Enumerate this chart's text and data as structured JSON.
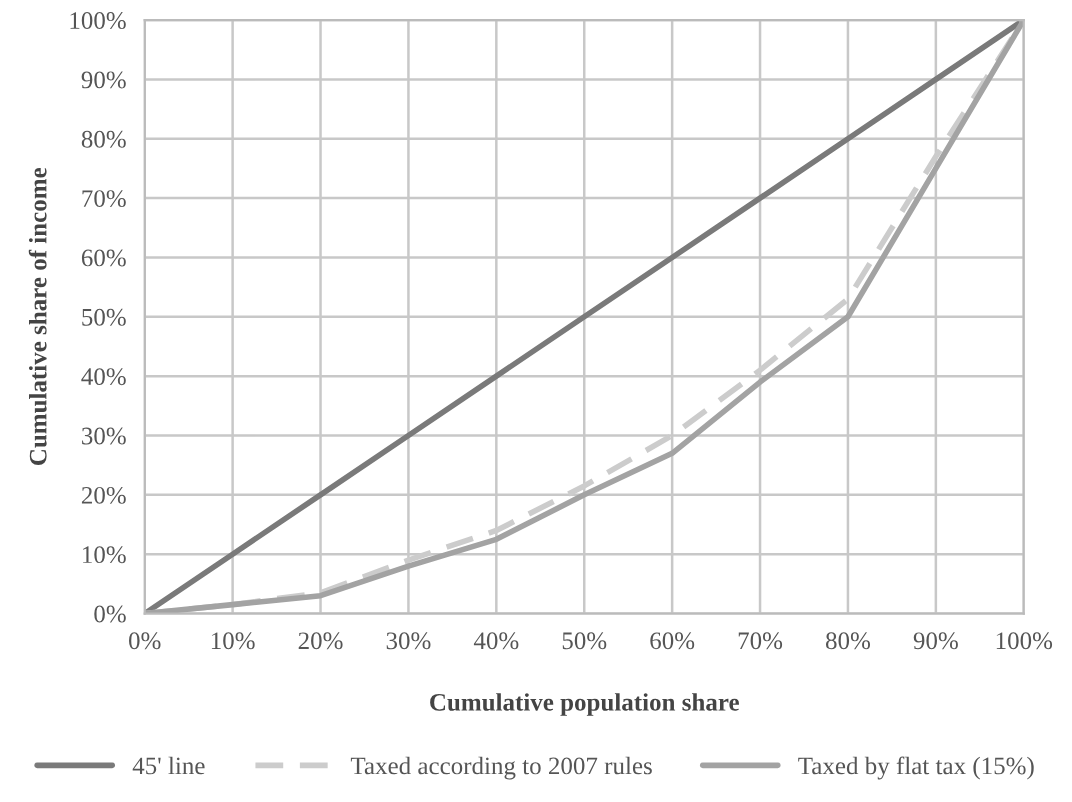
{
  "chart_data": {
    "type": "line",
    "xlabel": "Cumulative population share",
    "ylabel": "Cumulative share of income",
    "x": [
      0,
      10,
      20,
      30,
      40,
      50,
      60,
      70,
      80,
      90,
      100
    ],
    "series": [
      {
        "name": "45' line",
        "color": "#7a7a7a",
        "line_style": "solid",
        "values": [
          0,
          10,
          20,
          30,
          40,
          50,
          60,
          70,
          80,
          90,
          100
        ]
      },
      {
        "name": "Taxed according to 2007 rules",
        "color": "#cccccc",
        "line_style": "dashed",
        "values": [
          0,
          1.5,
          3.5,
          9,
          14,
          21.5,
          30,
          41,
          53,
          77,
          100
        ]
      },
      {
        "name": "Taxed by flat tax (15%)",
        "color": "#a3a3a3",
        "line_style": "solid",
        "values": [
          0,
          1.5,
          3,
          8,
          12.5,
          20,
          27,
          39,
          50,
          75,
          100
        ]
      }
    ],
    "xlim": [
      0,
      100
    ],
    "ylim": [
      0,
      100
    ],
    "xticks": [
      {
        "value": 0,
        "label": "0%"
      },
      {
        "value": 10,
        "label": "10%"
      },
      {
        "value": 20,
        "label": "20%"
      },
      {
        "value": 30,
        "label": "30%"
      },
      {
        "value": 40,
        "label": "40%"
      },
      {
        "value": 50,
        "label": "50%"
      },
      {
        "value": 60,
        "label": "60%"
      },
      {
        "value": 70,
        "label": "70%"
      },
      {
        "value": 80,
        "label": "80%"
      },
      {
        "value": 90,
        "label": "90%"
      },
      {
        "value": 100,
        "label": "100%"
      }
    ],
    "yticks": [
      {
        "value": 0,
        "label": "0%"
      },
      {
        "value": 10,
        "label": "10%"
      },
      {
        "value": 20,
        "label": "20%"
      },
      {
        "value": 30,
        "label": "30%"
      },
      {
        "value": 40,
        "label": "40%"
      },
      {
        "value": 50,
        "label": "50%"
      },
      {
        "value": 60,
        "label": "60%"
      },
      {
        "value": 70,
        "label": "70%"
      },
      {
        "value": 80,
        "label": "80%"
      },
      {
        "value": 90,
        "label": "90%"
      },
      {
        "value": 100,
        "label": "100%"
      }
    ],
    "grid": true,
    "legend": "bottom",
    "marker": "none"
  }
}
